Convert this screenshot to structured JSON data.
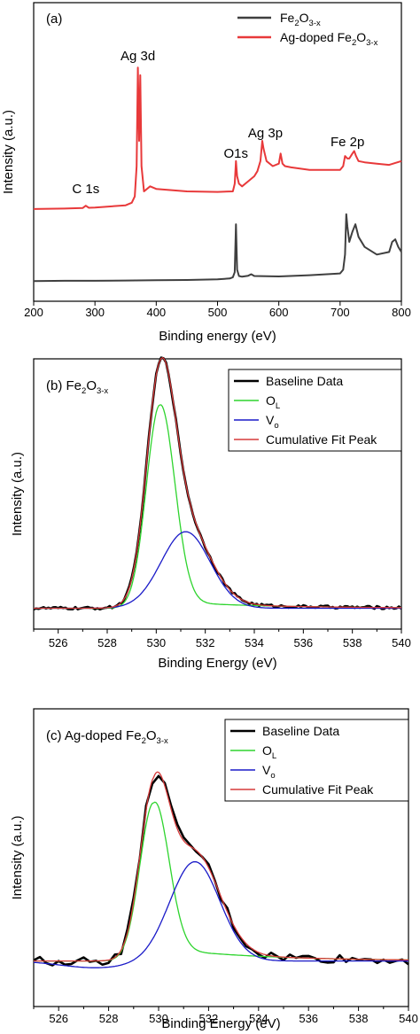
{
  "chart_data": [
    {
      "type": "line",
      "panel_label": "(a)",
      "title": "",
      "xlabel": "Binding energy (eV)",
      "ylabel": "Intensity (a.u.)",
      "xlim": [
        200,
        800
      ],
      "xticks": [
        "200",
        "300",
        "400",
        "500",
        "600",
        "700",
        "800"
      ],
      "y_ticks_shown": false,
      "legend_position": "top-right",
      "colors": {
        "fe2o3": "#3f3f3f",
        "ag": "#e8393a"
      },
      "legend": [
        {
          "base": "Fe",
          "s1": "2",
          "mid": "O",
          "s2": "3-x",
          "tail": ""
        },
        {
          "base": "Ag-doped Fe",
          "s1": "2",
          "mid": "O",
          "s2": "3-x",
          "tail": ""
        }
      ],
      "annotations": [
        {
          "text": "C 1s",
          "x": 285
        },
        {
          "text": "Ag 3d",
          "x": 370
        },
        {
          "text": "O1s",
          "x": 530
        },
        {
          "text": "Ag 3p",
          "x": 578
        },
        {
          "text": "Fe 2p",
          "x": 712
        }
      ],
      "ylim": [
        0,
        100
      ],
      "series": [
        {
          "key": "fe2o3",
          "name": "Fe2O3-x",
          "x": [
            200,
            250,
            300,
            350,
            400,
            450,
            500,
            520,
            525,
            528,
            530,
            532,
            535,
            540,
            550,
            555,
            560,
            600,
            650,
            700,
            705,
            708,
            710,
            712,
            715,
            720,
            725,
            730,
            740,
            760,
            780,
            785,
            790,
            795,
            800
          ],
          "y": [
            4.5,
            4.6,
            4.6,
            4.7,
            4.8,
            4.9,
            5.2,
            5.5,
            6,
            8,
            27,
            9,
            6.5,
            6.2,
            6.6,
            7.2,
            6.5,
            6.3,
            6.8,
            7.5,
            9,
            15,
            31,
            26,
            20,
            24,
            27,
            22,
            18,
            15,
            16,
            20,
            21,
            18,
            16
          ]
        },
        {
          "key": "ag",
          "name": "Ag-doped Fe2O3-x",
          "x": [
            200,
            250,
            280,
            285,
            290,
            300,
            350,
            360,
            365,
            368,
            370,
            372,
            374,
            376,
            380,
            390,
            400,
            450,
            500,
            525,
            528,
            530,
            532,
            535,
            540,
            550,
            560,
            565,
            570,
            573,
            575,
            580,
            590,
            600,
            603,
            606,
            610,
            620,
            650,
            700,
            705,
            708,
            712,
            715,
            720,
            723,
            726,
            730,
            740,
            760,
            780,
            800
          ],
          "y": [
            33,
            33.2,
            33.4,
            34.3,
            33.5,
            33.6,
            34.5,
            35.5,
            38,
            50,
            89,
            60,
            86,
            50,
            40,
            42,
            41,
            40,
            39.8,
            40,
            43,
            52,
            46,
            43,
            42,
            44,
            46,
            48,
            52,
            60,
            57,
            52,
            50,
            51,
            55,
            51,
            50,
            49.5,
            48.5,
            48.5,
            50,
            54,
            53,
            53,
            55,
            56,
            54,
            52,
            51.5,
            51,
            50.5,
            52
          ]
        }
      ]
    },
    {
      "type": "line",
      "panel_label": {
        "base": "(b) Fe",
        "s1": "2",
        "mid": "O",
        "s2": "3-x"
      },
      "title": "",
      "xlabel": "Binding Energy (eV)",
      "ylabel": "Intensity (a.u.)",
      "xlim": [
        525,
        540
      ],
      "xticks": [
        "526",
        "528",
        "530",
        "532",
        "534",
        "536",
        "538",
        "540"
      ],
      "y_ticks_shown": false,
      "legend_position": "top-right",
      "colors": {
        "baseline": "#000000",
        "ol": "#2ed42e",
        "vo": "#1a1ac8",
        "fit": "#d63a3a"
      },
      "legend": [
        {
          "key": "baseline",
          "base": "Baseline Data",
          "s1": ""
        },
        {
          "key": "ol",
          "base": "O",
          "s1": "L"
        },
        {
          "key": "vo",
          "base": "V",
          "s1": "o"
        },
        {
          "key": "fit",
          "base": "Cumulative Fit Peak",
          "s1": ""
        }
      ],
      "ylim": [
        0,
        100
      ],
      "baseline_level": 5,
      "peaks": {
        "ol": {
          "center": 530.15,
          "height": 85,
          "sigma_left": 0.55,
          "sigma_right": 0.6,
          "tail": 3
        },
        "vo": {
          "center": 531.2,
          "height": 32,
          "sigma_left": 1.0,
          "sigma_right": 1.0,
          "tail": 0
        }
      },
      "noise_amplitude": 0.6,
      "series": [
        {
          "key": "baseline",
          "name": "Baseline Data"
        },
        {
          "key": "ol",
          "name": "O_L"
        },
        {
          "key": "vo",
          "name": "V_o"
        },
        {
          "key": "fit",
          "name": "Cumulative Fit Peak"
        }
      ]
    },
    {
      "type": "line",
      "panel_label": {
        "base": "(c) Ag-doped Fe",
        "s1": "2",
        "mid": "O",
        "s2": "3-x"
      },
      "title": "",
      "xlabel": "Binding Energy (eV)",
      "ylabel": "Intensity (a.u.)",
      "xlim": [
        525,
        540
      ],
      "xticks": [
        "526",
        "528",
        "530",
        "532",
        "534",
        "536",
        "538",
        "540"
      ],
      "y_ticks_shown": false,
      "legend_position": "top-right",
      "colors": {
        "baseline": "#000000",
        "ol": "#2ed42e",
        "vo": "#1a1ac8",
        "fit": "#d63a3a"
      },
      "legend": [
        {
          "key": "baseline",
          "base": "Baseline Data",
          "s1": ""
        },
        {
          "key": "ol",
          "base": "O",
          "s1": "L"
        },
        {
          "key": "vo",
          "base": "V",
          "s1": "o"
        },
        {
          "key": "fit",
          "base": "Cumulative Fit Peak",
          "s1": ""
        }
      ],
      "ylim": [
        0,
        100
      ],
      "baseline_level": 8,
      "peaks": {
        "ol": {
          "center": 529.8,
          "height": 70,
          "sigma_left": 0.55,
          "sigma_right": 0.6,
          "tail": 6
        },
        "vo": {
          "center": 531.45,
          "height": 44,
          "sigma_left": 1.0,
          "sigma_right": 1.0,
          "tail": 0
        }
      },
      "noise_amplitude": 2.0,
      "series": [
        {
          "key": "baseline",
          "name": "Baseline Data"
        },
        {
          "key": "ol",
          "name": "O_L"
        },
        {
          "key": "vo",
          "name": "V_o"
        },
        {
          "key": "fit",
          "name": "Cumulative Fit Peak"
        }
      ]
    }
  ]
}
